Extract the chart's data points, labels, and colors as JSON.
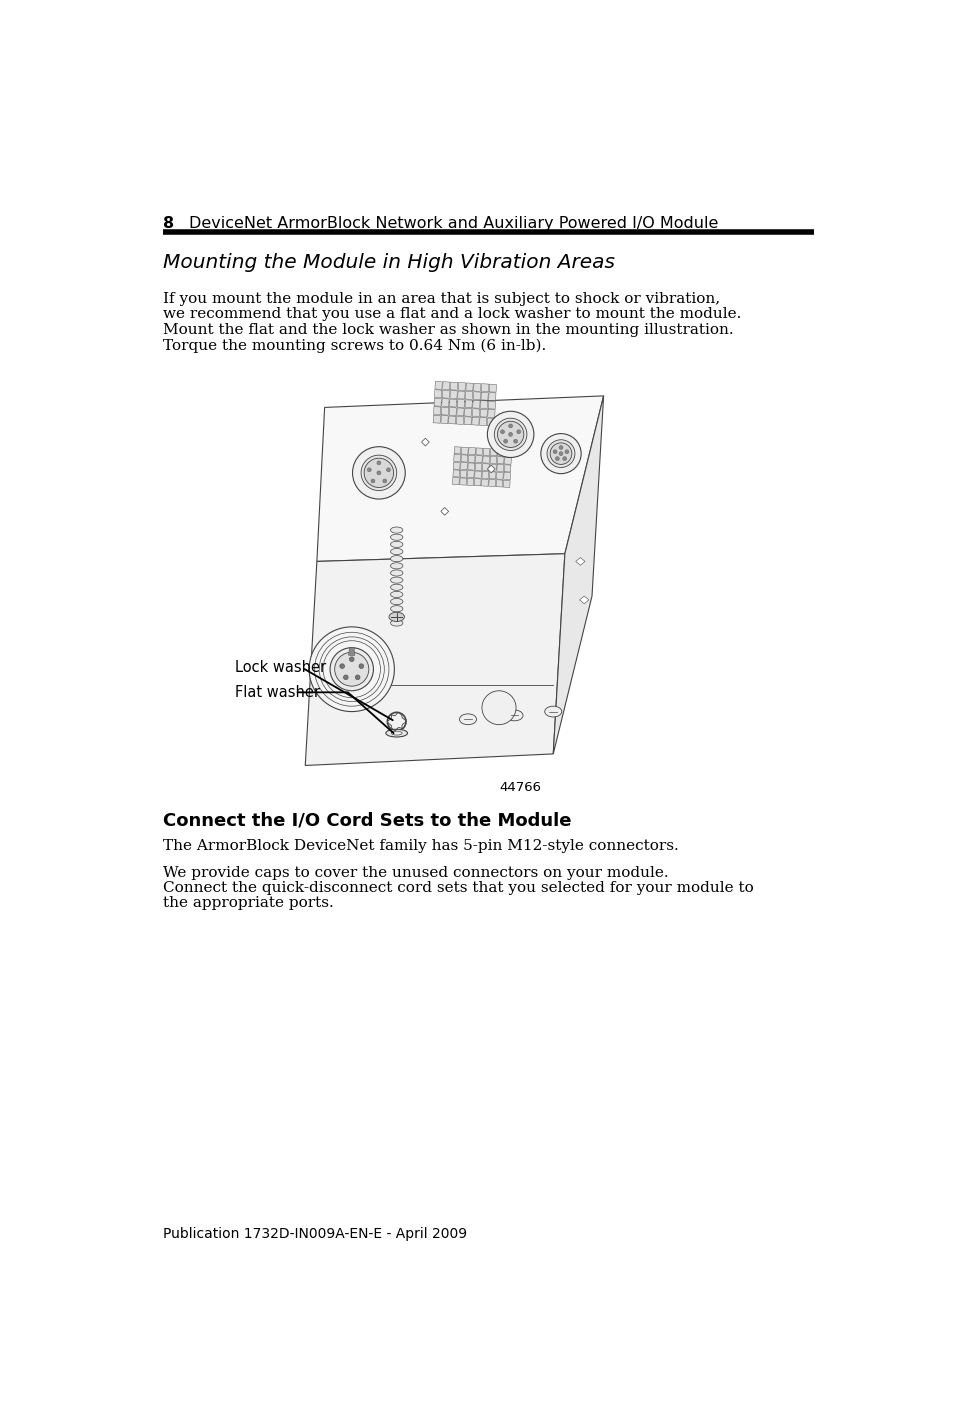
{
  "page_number": "8",
  "header_title": "DeviceNet ArmorBlock Network and Auxiliary Powered I/O Module",
  "section_title": "Mounting the Module in High Vibration Areas",
  "body_text_1_lines": [
    "If you mount the module in an area that is subject to shock or vibration,",
    "we recommend that you use a flat and a lock washer to mount the module.",
    "Mount the flat and the lock washer as shown in the mounting illustration.",
    "Torque the mounting screws to 0.64 Nm (6 in-lb)."
  ],
  "figure_number": "44766",
  "label_lock_washer": "Lock washer",
  "label_flat_washer": "Flat washer",
  "section2_title": "Connect the I/O Cord Sets to the Module",
  "body_text_2": "The ArmorBlock DeviceNet family has 5-pin M12-style connectors.",
  "body_text_3_lines": [
    "We provide caps to cover the unused connectors on your module.",
    "Connect the quick-disconnect cord sets that you selected for your module to",
    "the appropriate ports."
  ],
  "footer_text": "Publication 1732D-IN009A-EN-E - April 2009",
  "bg_color": "#ffffff",
  "text_color": "#000000",
  "line_color": "#aaaaaa"
}
